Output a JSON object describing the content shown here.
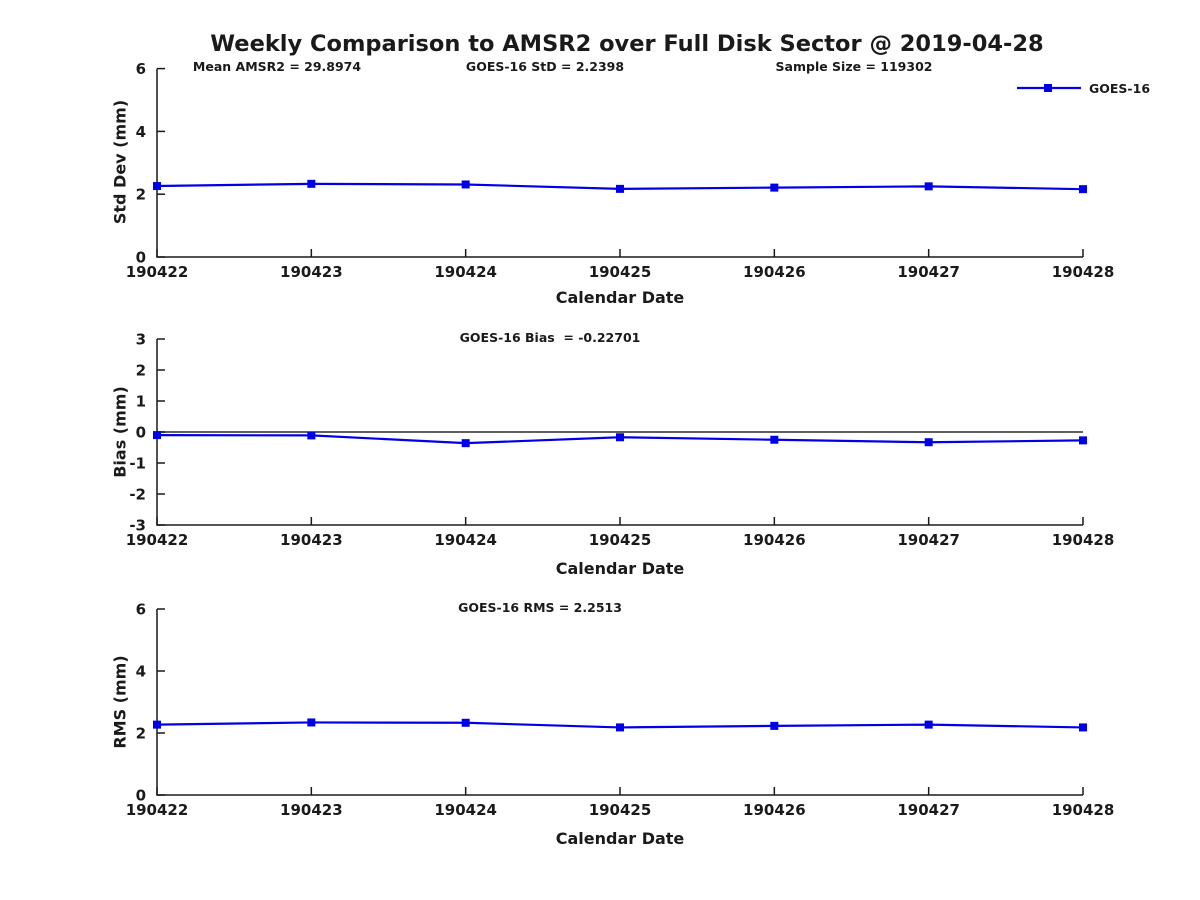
{
  "page": {
    "title": "Weekly Comparison to AMSR2 over Full Disk Sector @ 2019-04-28"
  },
  "legend": {
    "label": "GOES-16"
  },
  "colors": {
    "line": "#0000E8",
    "marker": "#0000E8",
    "axis": "#1a1a1a",
    "text": "#1a1a1a",
    "zero_line": "#000000",
    "background": "#ffffff"
  },
  "chart_data": [
    {
      "type": "line",
      "name": "std-dev",
      "annotations": [
        "Mean AMSR2 = 29.8974",
        "GOES-16 StD = 2.2398",
        "Sample Size = 119302"
      ],
      "xlabel": "Calendar Date",
      "ylabel": "Std Dev (mm)",
      "categories": [
        "190422",
        "190423",
        "190424",
        "190425",
        "190426",
        "190427",
        "190428"
      ],
      "series": [
        {
          "name": "GOES-16",
          "values": [
            2.26,
            2.33,
            2.31,
            2.17,
            2.21,
            2.25,
            2.16
          ]
        }
      ],
      "ylim": [
        0,
        6
      ],
      "yticks": [
        0,
        2,
        4,
        6
      ],
      "grid": false,
      "legend_position": "top-right"
    },
    {
      "type": "line",
      "name": "bias",
      "annotation": "GOES-16 Bias  = -0.22701",
      "xlabel": "Calendar Date",
      "ylabel": "Bias (mm)",
      "categories": [
        "190422",
        "190423",
        "190424",
        "190425",
        "190426",
        "190427",
        "190428"
      ],
      "series": [
        {
          "name": "GOES-16",
          "values": [
            -0.1,
            -0.11,
            -0.36,
            -0.17,
            -0.25,
            -0.33,
            -0.27
          ]
        }
      ],
      "ylim": [
        -3,
        3
      ],
      "yticks": [
        -3,
        -2,
        -1,
        0,
        1,
        2,
        3
      ],
      "zero_line": true,
      "grid": false
    },
    {
      "type": "line",
      "name": "rms",
      "annotation": "GOES-16 RMS = 2.2513",
      "xlabel": "Calendar Date",
      "ylabel": "RMS (mm)",
      "categories": [
        "190422",
        "190423",
        "190424",
        "190425",
        "190426",
        "190427",
        "190428"
      ],
      "series": [
        {
          "name": "GOES-16",
          "values": [
            2.27,
            2.34,
            2.33,
            2.18,
            2.23,
            2.27,
            2.18
          ]
        }
      ],
      "ylim": [
        0,
        6
      ],
      "yticks": [
        0,
        2,
        4,
        6
      ],
      "grid": false
    }
  ]
}
